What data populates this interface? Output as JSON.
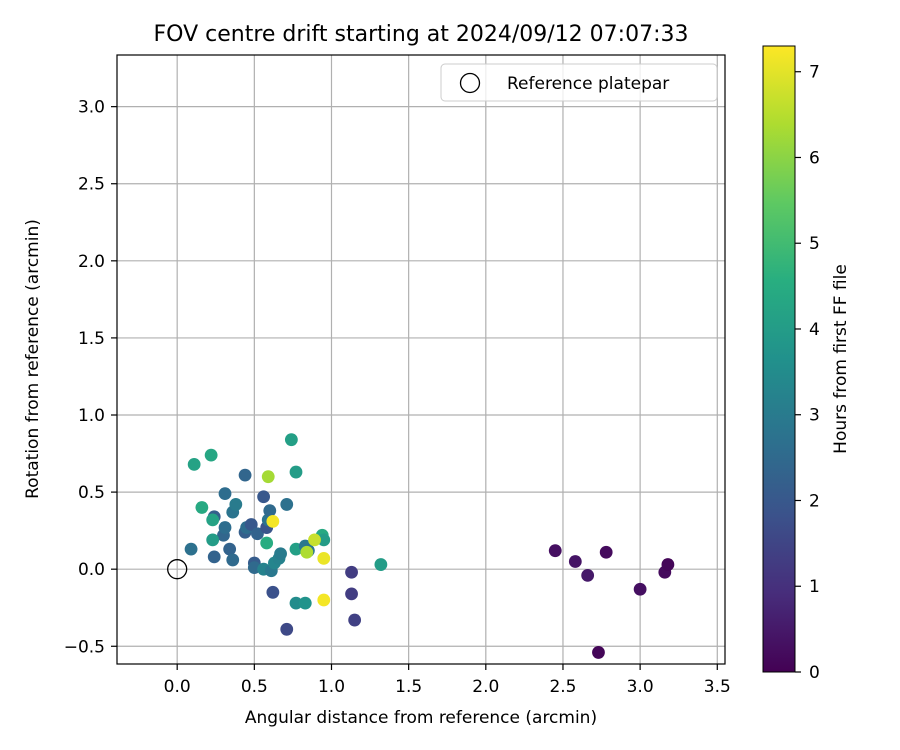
{
  "chart_data": {
    "type": "scatter",
    "title": "FOV centre drift starting at 2024/09/12 07:07:33",
    "xlabel": "Angular distance from reference (arcmin)",
    "ylabel": "Rotation from reference (arcmin)",
    "xlim": [
      -0.39,
      3.55
    ],
    "ylim": [
      -0.615,
      3.335
    ],
    "xticks": [
      0.0,
      0.5,
      1.0,
      1.5,
      2.0,
      2.5,
      3.0,
      3.5
    ],
    "xtick_labels": [
      "0.0",
      "0.5",
      "1.0",
      "1.5",
      "2.0",
      "2.5",
      "3.0",
      "3.5"
    ],
    "yticks": [
      -0.5,
      0.0,
      0.5,
      1.0,
      1.5,
      2.0,
      2.5,
      3.0
    ],
    "ytick_labels": [
      "−0.5",
      "0.0",
      "0.5",
      "1.0",
      "1.5",
      "2.0",
      "2.5",
      "3.0"
    ],
    "grid": true,
    "legend": {
      "position": "top-right",
      "entries": [
        "Reference platepar"
      ]
    },
    "reference_point": {
      "x": 0.0,
      "y": 0.0,
      "label": "Reference platepar"
    },
    "colorbar": {
      "label": "Hours from first FF file",
      "colormap": "viridis",
      "range": [
        0,
        7.3
      ],
      "ticks": [
        0,
        1,
        2,
        3,
        4,
        5,
        6,
        7
      ],
      "tick_labels": [
        "0",
        "1",
        "2",
        "3",
        "4",
        "5",
        "6",
        "7"
      ]
    },
    "points": [
      {
        "x": 2.45,
        "y": 0.12,
        "c": 0.3
      },
      {
        "x": 2.58,
        "y": 0.05,
        "c": 0.4
      },
      {
        "x": 2.66,
        "y": -0.04,
        "c": 0.5
      },
      {
        "x": 2.78,
        "y": 0.11,
        "c": 0.2
      },
      {
        "x": 2.73,
        "y": -0.54,
        "c": 0.1
      },
      {
        "x": 3.0,
        "y": -0.13,
        "c": 0.3
      },
      {
        "x": 3.16,
        "y": -0.02,
        "c": 0.2
      },
      {
        "x": 3.18,
        "y": 0.03,
        "c": 0.1
      },
      {
        "x": 1.13,
        "y": -0.02,
        "c": 1.3
      },
      {
        "x": 1.13,
        "y": -0.16,
        "c": 1.3
      },
      {
        "x": 1.15,
        "y": -0.33,
        "c": 1.4
      },
      {
        "x": 0.71,
        "y": -0.39,
        "c": 1.6
      },
      {
        "x": 0.62,
        "y": -0.15,
        "c": 1.8
      },
      {
        "x": 0.56,
        "y": 0.47,
        "c": 2.0
      },
      {
        "x": 0.44,
        "y": 0.61,
        "c": 2.4
      },
      {
        "x": 0.31,
        "y": 0.49,
        "c": 2.6
      },
      {
        "x": 0.24,
        "y": 0.08,
        "c": 2.3
      },
      {
        "x": 0.09,
        "y": 0.13,
        "c": 2.7
      },
      {
        "x": 0.24,
        "y": 0.34,
        "c": 2.2
      },
      {
        "x": 0.3,
        "y": 0.22,
        "c": 2.4
      },
      {
        "x": 0.31,
        "y": 0.27,
        "c": 2.6
      },
      {
        "x": 0.34,
        "y": 0.13,
        "c": 2.3
      },
      {
        "x": 0.36,
        "y": 0.06,
        "c": 2.5
      },
      {
        "x": 0.36,
        "y": 0.37,
        "c": 2.8
      },
      {
        "x": 0.38,
        "y": 0.42,
        "c": 3.0
      },
      {
        "x": 0.44,
        "y": 0.24,
        "c": 2.2
      },
      {
        "x": 0.45,
        "y": 0.27,
        "c": 2.6
      },
      {
        "x": 0.48,
        "y": 0.29,
        "c": 2.0
      },
      {
        "x": 0.5,
        "y": 0.04,
        "c": 2.1
      },
      {
        "x": 0.5,
        "y": 0.01,
        "c": 2.5
      },
      {
        "x": 0.52,
        "y": 0.23,
        "c": 2.3
      },
      {
        "x": 0.56,
        "y": 0.0,
        "c": 3.2
      },
      {
        "x": 0.58,
        "y": 0.27,
        "c": 1.9
      },
      {
        "x": 0.59,
        "y": 0.32,
        "c": 2.8
      },
      {
        "x": 0.6,
        "y": 0.38,
        "c": 2.5
      },
      {
        "x": 0.61,
        "y": -0.01,
        "c": 2.9
      },
      {
        "x": 0.63,
        "y": 0.04,
        "c": 3.3
      },
      {
        "x": 0.66,
        "y": 0.07,
        "c": 3.2
      },
      {
        "x": 0.67,
        "y": 0.1,
        "c": 3.0
      },
      {
        "x": 0.71,
        "y": 0.42,
        "c": 2.7
      },
      {
        "x": 0.77,
        "y": 0.13,
        "c": 4.1
      },
      {
        "x": 0.83,
        "y": 0.15,
        "c": 2.9
      },
      {
        "x": 0.85,
        "y": 0.12,
        "c": 2.8
      },
      {
        "x": 0.23,
        "y": 0.19,
        "c": 4.0
      },
      {
        "x": 0.23,
        "y": 0.32,
        "c": 4.2
      },
      {
        "x": 0.16,
        "y": 0.4,
        "c": 4.4
      },
      {
        "x": 0.11,
        "y": 0.68,
        "c": 4.2
      },
      {
        "x": 0.22,
        "y": 0.74,
        "c": 4.3
      },
      {
        "x": 0.58,
        "y": 0.17,
        "c": 4.5
      },
      {
        "x": 0.74,
        "y": 0.84,
        "c": 4.1
      },
      {
        "x": 0.77,
        "y": 0.63,
        "c": 4.0
      },
      {
        "x": 0.77,
        "y": -0.22,
        "c": 3.5
      },
      {
        "x": 0.83,
        "y": -0.22,
        "c": 3.7
      },
      {
        "x": 0.94,
        "y": 0.22,
        "c": 4.4
      },
      {
        "x": 0.95,
        "y": 0.19,
        "c": 4.0
      },
      {
        "x": 1.32,
        "y": 0.03,
        "c": 4.0
      },
      {
        "x": 0.59,
        "y": 0.6,
        "c": 6.3
      },
      {
        "x": 0.62,
        "y": 0.31,
        "c": 7.2
      },
      {
        "x": 0.84,
        "y": 0.11,
        "c": 6.4
      },
      {
        "x": 0.89,
        "y": 0.19,
        "c": 6.7
      },
      {
        "x": 0.95,
        "y": 0.07,
        "c": 7.1
      },
      {
        "x": 0.95,
        "y": -0.2,
        "c": 7.2
      }
    ]
  }
}
